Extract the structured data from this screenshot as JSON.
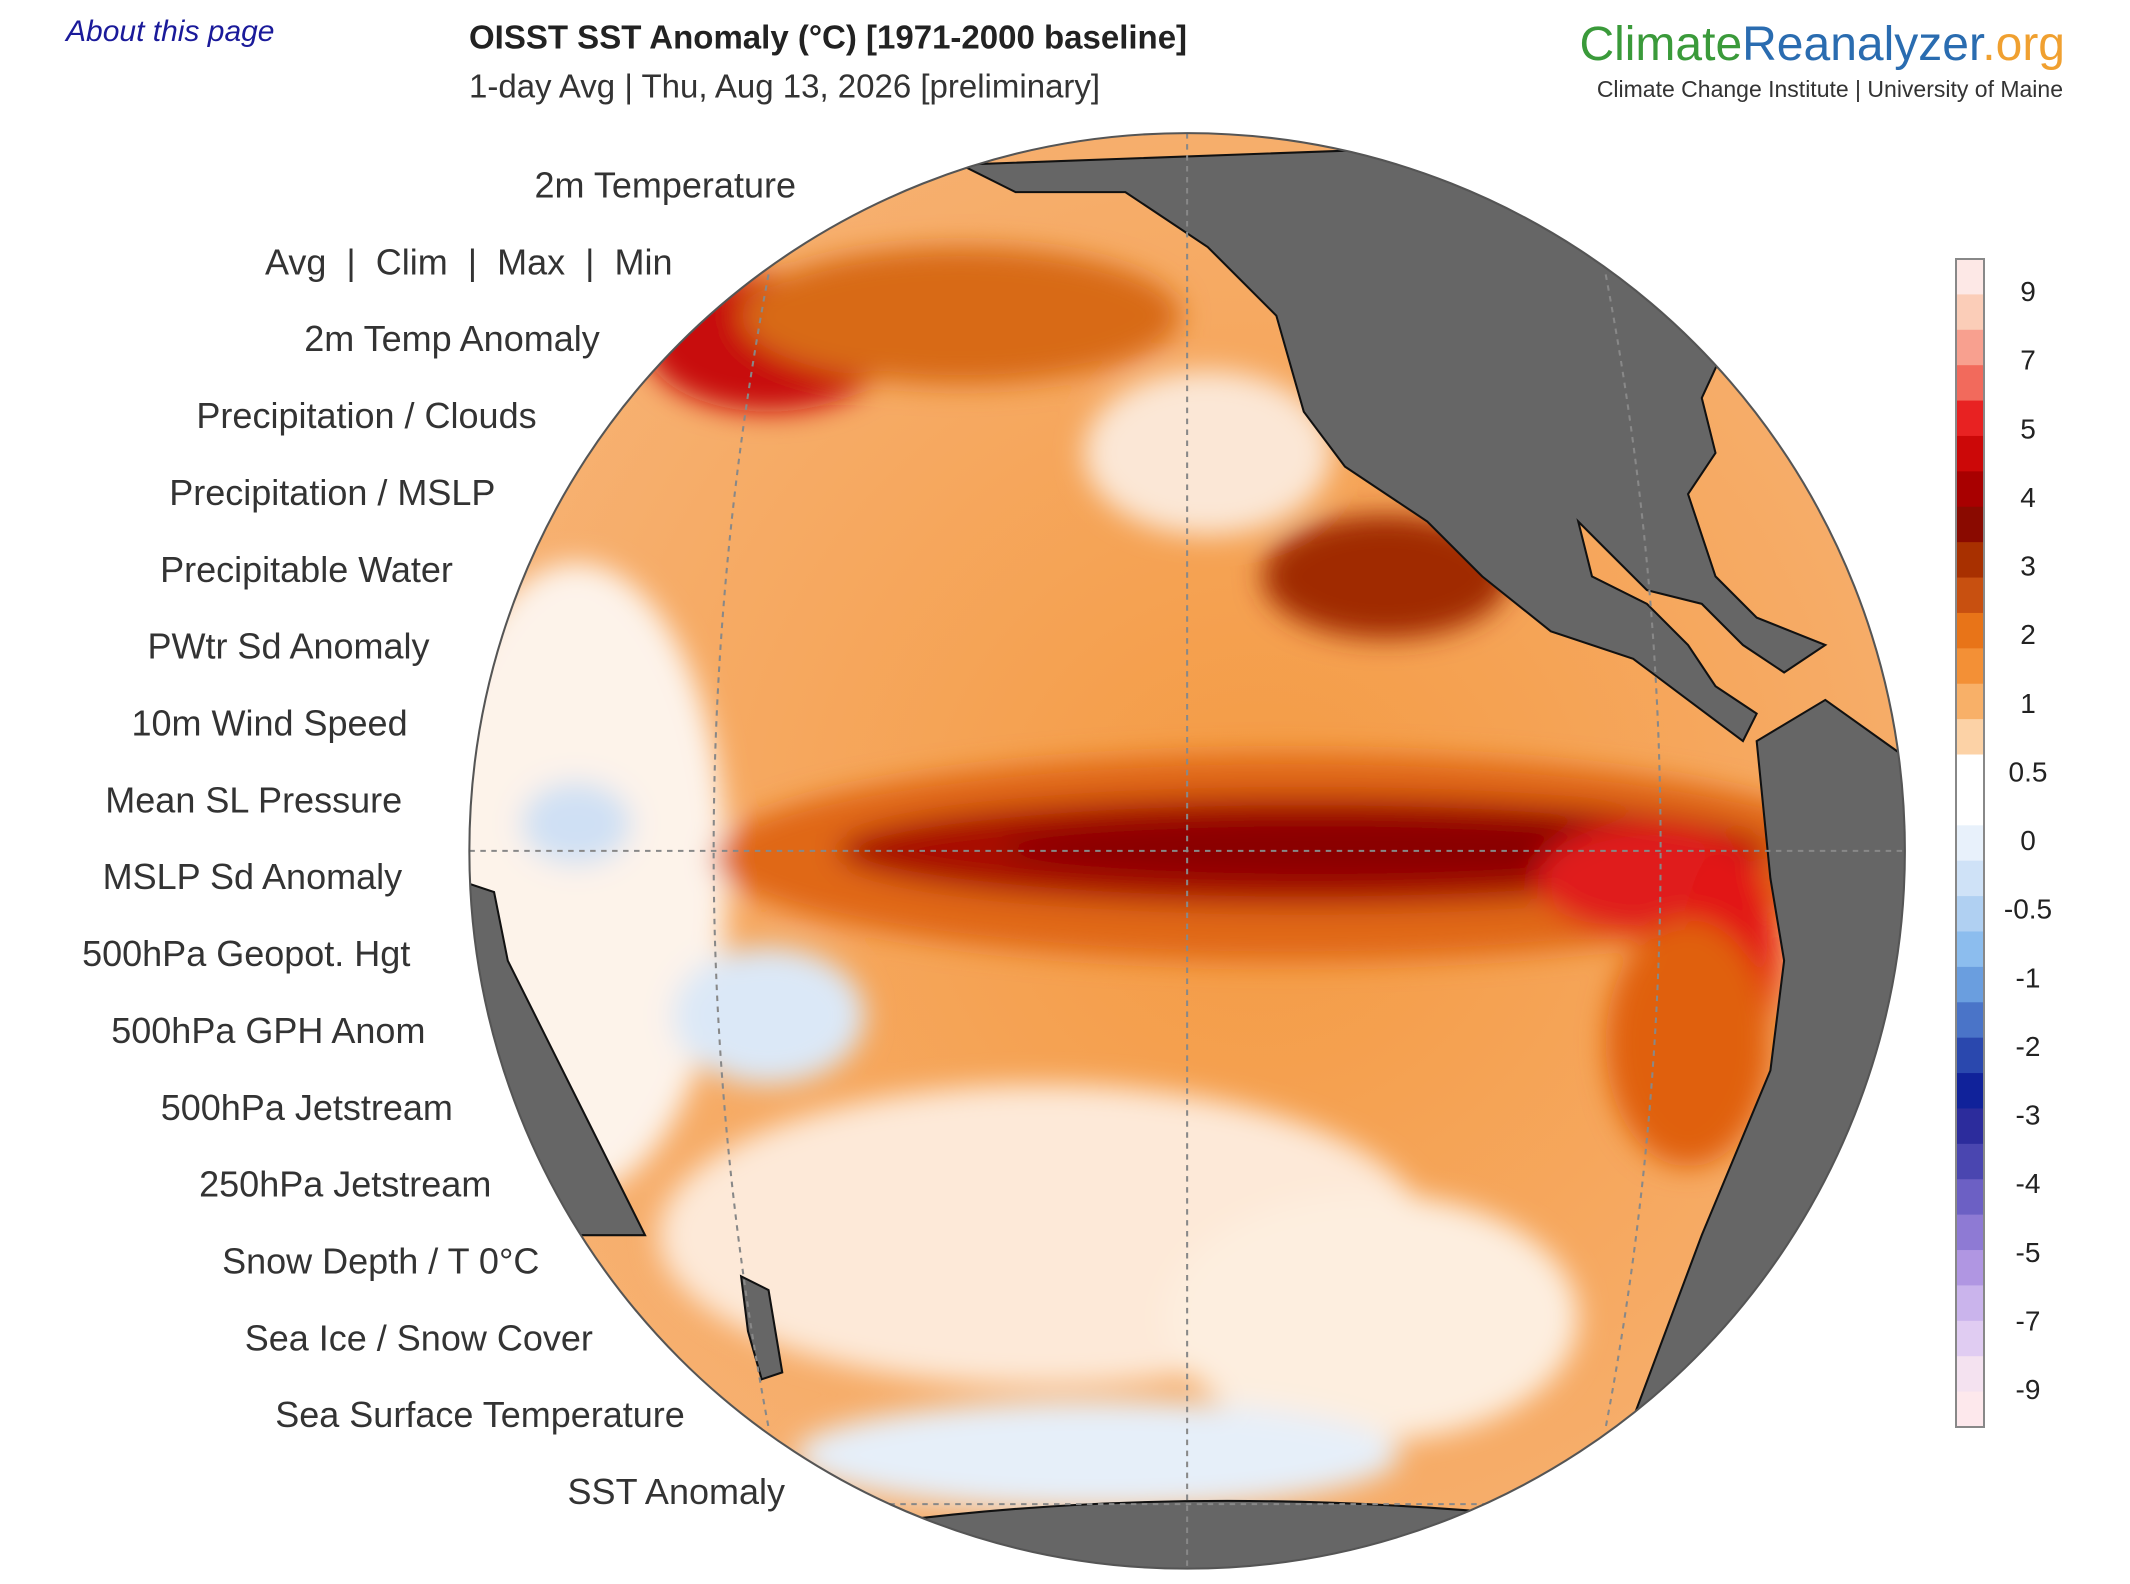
{
  "header": {
    "about_link": "About this page",
    "title": "OISST SST Anomaly (°C) [1971-2000 baseline]",
    "subtitle": "1-day Avg | Thu, Aug 13, 2026 [preliminary]"
  },
  "logo": {
    "climate": "Climate",
    "reanalyzer": "Reanalyzer",
    "org": ".org",
    "tagline": "Climate Change Institute | University of Maine"
  },
  "menu": {
    "items": [
      "2m Temperature",
      "Avg  |  Clim  |  Max  |  Min",
      "2m Temp Anomaly",
      "Precipitation / Clouds",
      "Precipitation / MSLP",
      "Precipitable Water",
      "PWtr Sd Anomaly",
      "10m Wind Speed",
      "Mean SL Pressure",
      "MSLP Sd Anomaly",
      "500hPa Geopot. Hgt",
      "500hPa GPH Anom",
      "500hPa Jetstream",
      "250hPa Jetstream",
      "Snow Depth / T 0°C",
      "Sea Ice / Snow Cover",
      "Sea Surface Temperature",
      "SST Anomaly"
    ]
  },
  "colorbar": {
    "labels": [
      "9",
      "7",
      "5",
      "4",
      "3",
      "2",
      "1",
      "0.5",
      "0",
      "-0.5",
      "-1",
      "-2",
      "-3",
      "-4",
      "-5",
      "-7",
      "-9"
    ],
    "colors": [
      "#fde8e6",
      "#fbcdb8",
      "#f8a08f",
      "#f26a5c",
      "#e82222",
      "#cc0808",
      "#a80000",
      "#8a0a00",
      "#a83000",
      "#c85010",
      "#e87418",
      "#f39036",
      "#f8b068",
      "#fcd2a6",
      "#ffffff",
      "#ffffff",
      "#e8f1fb",
      "#cfe2f7",
      "#b0d0f2",
      "#8cbdee",
      "#6a9edf",
      "#4a74c8",
      "#2a48ae",
      "#10229a",
      "#2c2c9c",
      "#4a46b0",
      "#6c60c4",
      "#8e7ad4",
      "#b096e2",
      "#cab4ec",
      "#e0ccf2",
      "#f4e2f0",
      "#fde8ec"
    ]
  }
}
